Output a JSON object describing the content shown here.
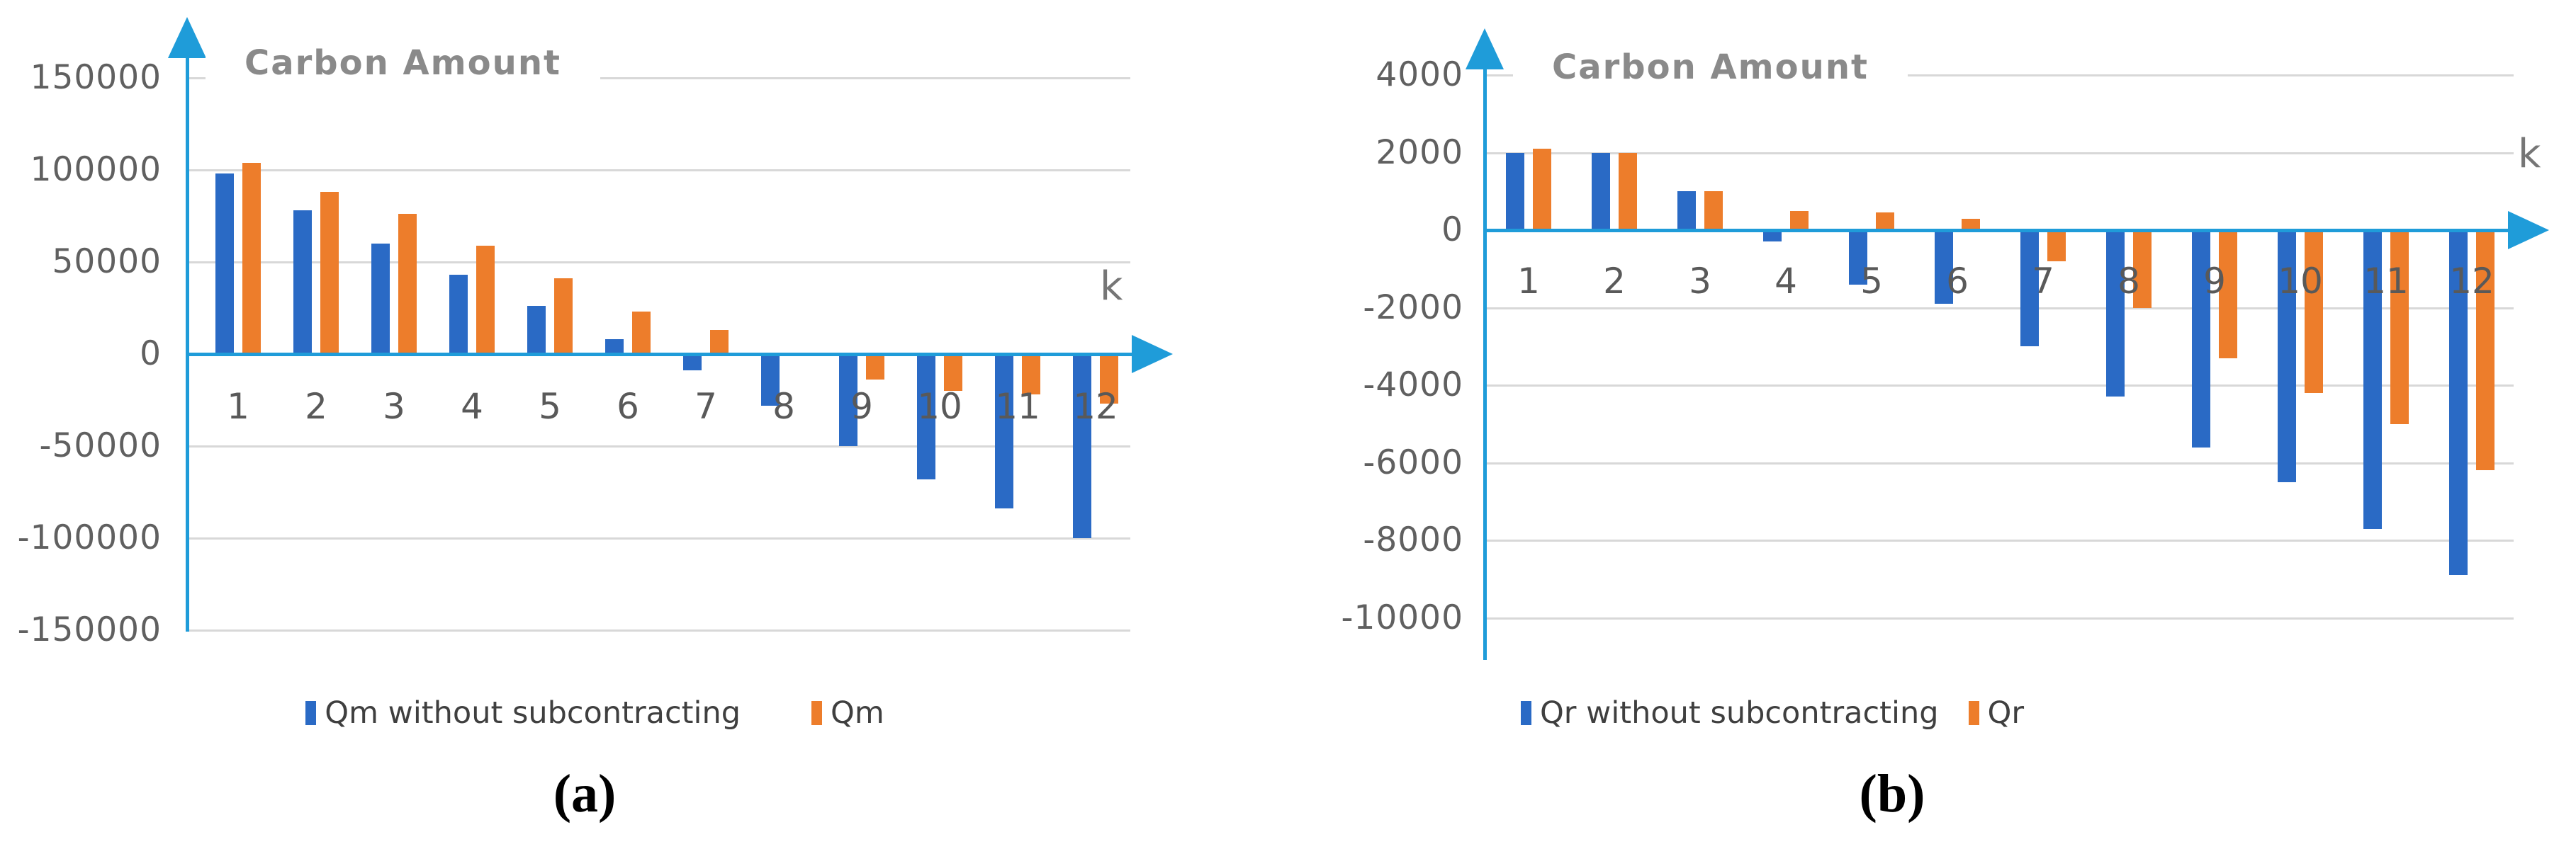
{
  "panels": [
    {
      "caption": "(a)"
    },
    {
      "caption": "(b)"
    }
  ],
  "colors": {
    "series_blue": "#2a6ac5",
    "series_orange": "#ed7d2b",
    "axis_blue": "#1f9cd9",
    "gridline_gray": "#d8d8d8",
    "tick_label_gray": "#606060",
    "title_gray": "#8a8a8a"
  },
  "chart_data": [
    {
      "type": "bar",
      "title": "Carbon Amount",
      "xlabel": "k",
      "ylabel": "",
      "categories": [
        "1",
        "2",
        "3",
        "4",
        "5",
        "6",
        "7",
        "8",
        "9",
        "10",
        "11",
        "12"
      ],
      "y_ticks": [
        150000,
        100000,
        50000,
        0,
        -50000,
        -100000,
        -150000
      ],
      "ylim": [
        -150000,
        150000
      ],
      "grid": true,
      "legend_position": "bottom",
      "series": [
        {
          "name": "Qm without subcontracting",
          "color": "#2a6ac5",
          "values": [
            98000,
            78000,
            60000,
            43000,
            26000,
            8000,
            -9000,
            -28000,
            -50000,
            -68000,
            -84000,
            -100000
          ]
        },
        {
          "name": "Qm",
          "color": "#ed7d2b",
          "values": [
            104000,
            88000,
            76000,
            59000,
            41000,
            23000,
            13000,
            0,
            -14000,
            -20000,
            -22000,
            -27000
          ]
        }
      ]
    },
    {
      "type": "bar",
      "title": "Carbon Amount",
      "xlabel": "k",
      "ylabel": "",
      "categories": [
        "1",
        "2",
        "3",
        "4",
        "5",
        "6",
        "7",
        "8",
        "9",
        "10",
        "11",
        "12"
      ],
      "y_ticks": [
        4000,
        2000,
        0,
        -2000,
        -4000,
        -6000,
        -8000,
        -10000
      ],
      "ylim": [
        -10000,
        4000
      ],
      "grid": true,
      "legend_position": "bottom",
      "series": [
        {
          "name": "Qr without subcontracting",
          "color": "#2a6ac5",
          "values": [
            2000,
            2000,
            1000,
            -300,
            -1400,
            -1900,
            -3000,
            -4300,
            -5600,
            -6500,
            -7700,
            -8900
          ]
        },
        {
          "name": "Qr",
          "color": "#ed7d2b",
          "values": [
            2100,
            2000,
            1000,
            500,
            450,
            300,
            -800,
            -2000,
            -3300,
            -4200,
            -5000,
            -6200
          ]
        }
      ]
    }
  ]
}
